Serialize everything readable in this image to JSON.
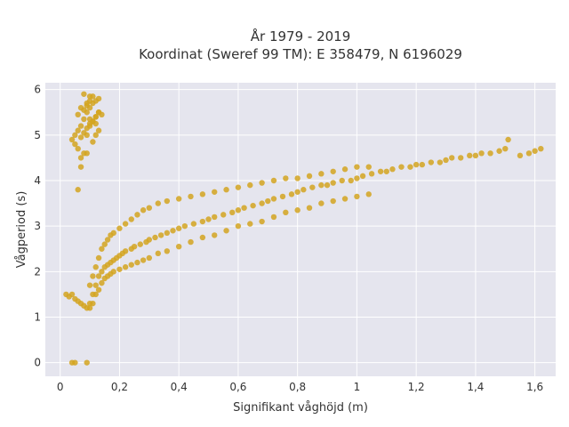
{
  "chart_data": {
    "type": "scatter",
    "title_line1": "År 1979 - 2019",
    "title_line2": "Koordinat (Sweref 99 TM): E 358479, N 6196029",
    "xlabel": "Signifikant våghöjd (m)",
    "ylabel": "Vågperiod (s)",
    "xlim": [
      -0.05,
      1.67
    ],
    "ylim": [
      -0.3,
      6.15
    ],
    "x_ticks": [
      0,
      0.2,
      0.4,
      0.6,
      0.8,
      1,
      1.2,
      1.4,
      1.6
    ],
    "x_tick_labels": [
      "0",
      "0,2",
      "0,4",
      "0,6",
      "0,8",
      "1",
      "1,2",
      "1,4",
      "1,6"
    ],
    "y_ticks": [
      0,
      1,
      2,
      3,
      4,
      5,
      6
    ],
    "y_tick_labels": [
      "0",
      "1",
      "2",
      "3",
      "4",
      "5",
      "6"
    ],
    "grid": true,
    "background_color": "#e5e5ee",
    "grid_color": "#ffffff",
    "marker_color": "#d4a520",
    "series": [
      {
        "x": [
          0.02,
          0.03,
          0.04,
          0.05,
          0.06,
          0.07,
          0.08,
          0.09,
          0.1,
          0.11,
          0.12,
          0.13,
          0.14,
          0.15,
          0.16,
          0.17,
          0.18,
          0.19,
          0.2,
          0.21,
          0.22,
          0.24,
          0.25,
          0.27,
          0.29,
          0.3,
          0.32,
          0.34,
          0.36,
          0.38,
          0.4,
          0.42,
          0.45,
          0.48,
          0.5,
          0.52,
          0.55,
          0.58,
          0.6,
          0.62,
          0.65,
          0.68,
          0.7,
          0.72,
          0.75,
          0.78,
          0.8,
          0.82,
          0.85,
          0.88,
          0.9,
          0.92,
          0.95,
          0.98,
          1.0,
          1.02,
          1.05,
          1.08,
          1.1,
          1.12,
          1.15,
          1.18,
          1.2,
          1.22,
          1.25,
          1.28,
          1.3,
          1.32,
          1.35,
          1.38,
          1.4,
          1.42,
          1.45,
          1.48,
          1.5,
          1.51,
          1.55,
          1.58,
          1.6,
          1.62,
          0.1,
          0.11,
          0.12,
          0.13,
          0.14,
          0.15,
          0.16,
          0.17,
          0.18,
          0.2,
          0.22,
          0.24,
          0.26,
          0.28,
          0.3,
          0.33,
          0.36,
          0.4,
          0.44,
          0.48,
          0.52,
          0.56,
          0.6,
          0.64,
          0.68,
          0.72,
          0.76,
          0.8,
          0.84,
          0.88,
          0.92,
          0.96,
          1.0,
          1.04,
          0.1,
          0.11,
          0.12,
          0.13,
          0.14,
          0.15,
          0.16,
          0.17,
          0.18,
          0.2,
          0.22,
          0.24,
          0.26,
          0.28,
          0.3,
          0.33,
          0.36,
          0.4,
          0.44,
          0.48,
          0.52,
          0.56,
          0.6,
          0.64,
          0.68,
          0.72,
          0.76,
          0.8,
          0.84,
          0.88,
          0.92,
          0.96,
          1.0,
          1.04,
          0.04,
          0.05,
          0.06,
          0.07,
          0.08,
          0.09,
          0.1,
          0.11,
          0.12,
          0.13,
          0.14,
          0.05,
          0.06,
          0.07,
          0.08,
          0.09,
          0.1,
          0.11,
          0.12,
          0.13,
          0.08,
          0.1,
          0.12,
          0.07,
          0.09,
          0.11,
          0.13,
          0.04,
          0.05,
          0.09,
          0.06,
          0.07,
          0.08,
          0.09,
          0.1,
          0.11,
          0.12,
          0.13,
          0.08,
          0.09,
          0.1,
          0.11,
          0.06,
          0.07,
          0.09,
          0.1,
          0.12
        ],
        "y": [
          1.5,
          1.45,
          1.5,
          1.4,
          1.35,
          1.3,
          1.25,
          1.2,
          1.3,
          1.5,
          1.7,
          1.9,
          2.0,
          2.1,
          2.15,
          2.2,
          2.25,
          2.3,
          2.35,
          2.4,
          2.45,
          2.5,
          2.55,
          2.6,
          2.65,
          2.7,
          2.75,
          2.8,
          2.85,
          2.9,
          2.95,
          3.0,
          3.05,
          3.1,
          3.15,
          3.2,
          3.25,
          3.3,
          3.35,
          3.4,
          3.45,
          3.5,
          3.55,
          3.6,
          3.65,
          3.7,
          3.75,
          3.8,
          3.85,
          3.9,
          3.9,
          3.95,
          4.0,
          4.0,
          4.05,
          4.1,
          4.15,
          4.2,
          4.2,
          4.25,
          4.3,
          4.3,
          4.35,
          4.35,
          4.4,
          4.4,
          4.45,
          4.5,
          4.5,
          4.55,
          4.55,
          4.6,
          4.6,
          4.65,
          4.7,
          4.9,
          4.55,
          4.6,
          4.65,
          4.7,
          1.7,
          1.9,
          2.1,
          2.3,
          2.5,
          2.6,
          2.7,
          2.8,
          2.85,
          2.95,
          3.05,
          3.15,
          3.25,
          3.35,
          3.4,
          3.5,
          3.55,
          3.6,
          3.65,
          3.7,
          3.75,
          3.8,
          3.85,
          3.9,
          3.95,
          4.0,
          4.05,
          4.05,
          4.1,
          4.15,
          4.2,
          4.25,
          4.3,
          4.3,
          1.2,
          1.3,
          1.5,
          1.6,
          1.75,
          1.85,
          1.9,
          1.95,
          2.0,
          2.05,
          2.1,
          2.15,
          2.2,
          2.25,
          2.3,
          2.4,
          2.45,
          2.55,
          2.65,
          2.75,
          2.8,
          2.9,
          3.0,
          3.05,
          3.1,
          3.2,
          3.3,
          3.35,
          3.4,
          3.5,
          3.55,
          3.6,
          3.65,
          3.7,
          4.9,
          5.0,
          5.1,
          4.95,
          5.05,
          5.15,
          5.25,
          5.3,
          5.4,
          5.5,
          5.45,
          4.8,
          4.7,
          5.2,
          5.35,
          5.5,
          5.6,
          5.7,
          5.75,
          5.8,
          5.9,
          5.85,
          5.0,
          4.5,
          4.6,
          4.85,
          5.1,
          0.0,
          0.0,
          0.0,
          3.8,
          4.3,
          4.6,
          5.0,
          5.2,
          5.3,
          5.4,
          5.5,
          5.55,
          5.65,
          5.75,
          5.85,
          5.45,
          5.6,
          5.7,
          5.35,
          5.25
        ]
      }
    ]
  }
}
